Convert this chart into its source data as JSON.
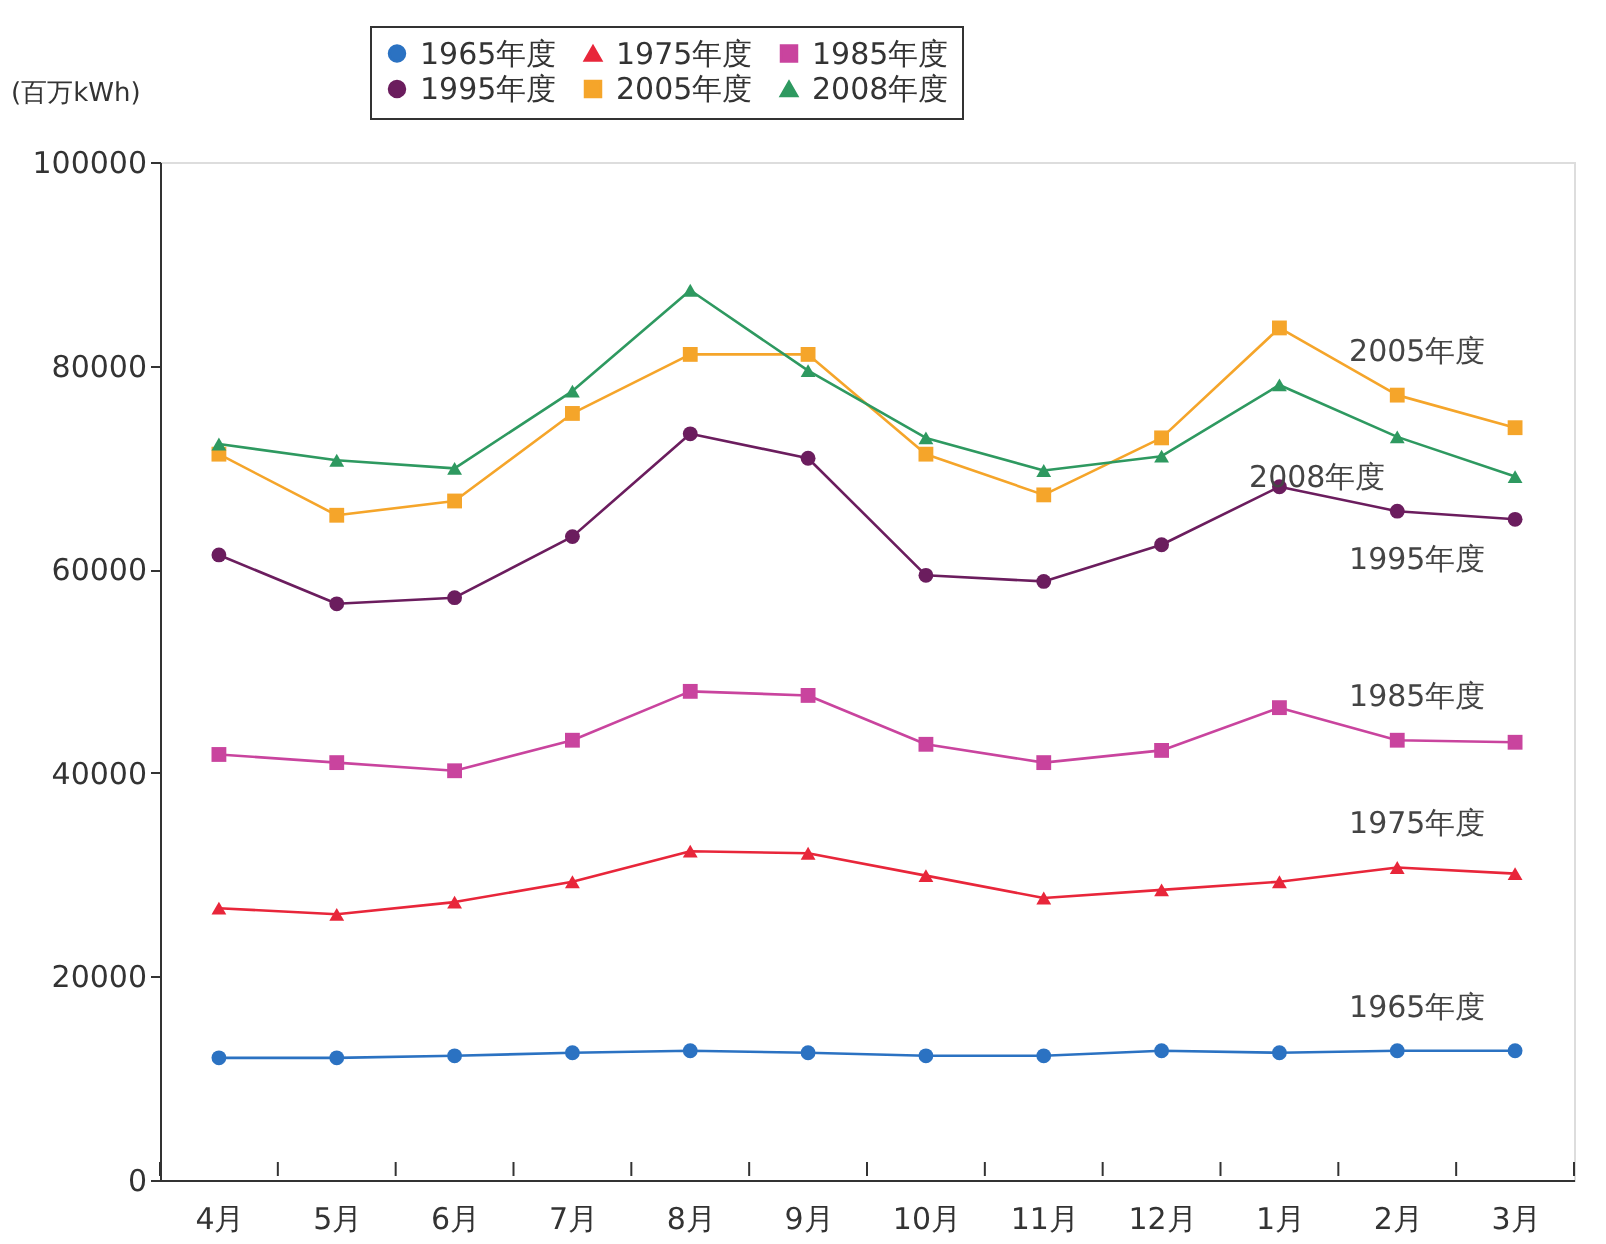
{
  "chart_data": {
    "type": "line",
    "ylabel": "(百万kWh)",
    "categories": [
      "4月",
      "5月",
      "6月",
      "7月",
      "8月",
      "9月",
      "10月",
      "11月",
      "12月",
      "1月",
      "2月",
      "3月"
    ],
    "ylim": [
      0,
      100000
    ],
    "yticks": [
      0,
      20000,
      40000,
      60000,
      80000,
      100000
    ],
    "grid": false,
    "legend": "top",
    "line_style": "solid",
    "series": [
      {
        "name": "1965年度",
        "color": "#2b72c2",
        "marker": "circle",
        "values": [
          12000,
          12000,
          12200,
          12500,
          12700,
          12500,
          12200,
          12200,
          12700,
          12500,
          12700,
          12700
        ]
      },
      {
        "name": "1975年度",
        "color": "#e8263a",
        "marker": "triangle",
        "values": [
          26700,
          26100,
          27300,
          29300,
          32300,
          32100,
          29900,
          27700,
          28500,
          29300,
          30700,
          30100
        ]
      },
      {
        "name": "1985年度",
        "color": "#c9449e",
        "marker": "square",
        "values": [
          41800,
          41000,
          40200,
          43200,
          48000,
          47600,
          42800,
          41000,
          42200,
          46400,
          43200,
          43000
        ]
      },
      {
        "name": "1995年度",
        "color": "#6b1d5e",
        "marker": "circle",
        "values": [
          61400,
          56600,
          57200,
          63200,
          73300,
          70900,
          59400,
          58800,
          62400,
          68100,
          65700,
          64900
        ]
      },
      {
        "name": "2005年度",
        "color": "#f5a52a",
        "marker": "square",
        "values": [
          71300,
          65300,
          66700,
          75300,
          81100,
          81100,
          71300,
          67300,
          72900,
          83700,
          77100,
          73900
        ]
      },
      {
        "name": "2008年度",
        "color": "#2e9960",
        "marker": "triangle",
        "values": [
          72300,
          70700,
          69900,
          77500,
          87400,
          79500,
          72900,
          69700,
          71100,
          78100,
          73000,
          69100
        ]
      }
    ],
    "annotations": [
      "1965年度",
      "1975年度",
      "1985年度",
      "1995年度",
      "2005年度",
      "2008年度"
    ]
  }
}
